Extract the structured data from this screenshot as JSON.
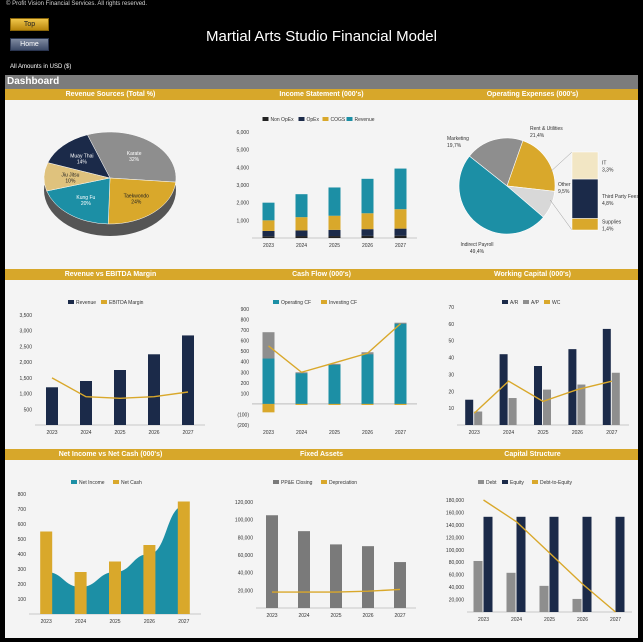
{
  "header": {
    "copyright": "© Profit Vision Financial Services. All rights reserved.",
    "top_button": "Top",
    "home_button": "Home",
    "title": "Martial Arts Studio Financial Model",
    "amounts_note": "All Amounts in  USD ($)",
    "dashboard_label": "Dashboard"
  },
  "colors": {
    "gold": "#d7a72a",
    "navy": "#1b2a49",
    "teal": "#1c8fa5",
    "gray": "#8a8a8a",
    "dark": "#2b2b2b"
  },
  "chart_data": [
    {
      "id": "revenue_sources",
      "type": "pie",
      "title": "Revenue Sources (Total %)",
      "slices": [
        {
          "label": "Karate",
          "value": 32,
          "pct_text": "32%",
          "color": "#8e8e8e"
        },
        {
          "label": "Taekwondo",
          "value": 24,
          "pct_text": "24%",
          "color": "#d9a82b"
        },
        {
          "label": "Kung Fu",
          "value": 20,
          "pct_text": "20%",
          "color": "#1c8fa5"
        },
        {
          "label": "Jiu Jitsu",
          "value": 10,
          "pct_text": "10%",
          "color": "#dfc27d"
        },
        {
          "label": "Muay Thai",
          "value": 14,
          "pct_text": "14%",
          "color": "#1b2a49"
        }
      ]
    },
    {
      "id": "income_statement",
      "type": "bar",
      "stacked": true,
      "title": "Income Statement (000's)",
      "categories": [
        "2023",
        "2024",
        "2025",
        "2026",
        "2027"
      ],
      "legend": [
        "Non OpEx",
        "OpEx",
        "COGS",
        "Revenue"
      ],
      "series": [
        {
          "name": "Non OpEx",
          "color": "#222222",
          "values": [
            100,
            110,
            110,
            120,
            130
          ]
        },
        {
          "name": "OpEx",
          "color": "#1b2a49",
          "values": [
            300,
            320,
            350,
            380,
            400
          ]
        },
        {
          "name": "COGS",
          "color": "#d9a82b",
          "values": [
            600,
            750,
            800,
            900,
            1100
          ]
        },
        {
          "name": "Revenue",
          "color": "#1c8fa5",
          "values": [
            1000,
            1300,
            1600,
            1950,
            2300
          ]
        }
      ],
      "ylim": [
        0,
        6000
      ],
      "yticks": [
        0,
        1000,
        2000,
        3000,
        4000,
        5000,
        6000
      ],
      "ytick_labels": [
        "",
        "1,000",
        "2,000",
        "3,000",
        "4,000",
        "5,000",
        "6,000"
      ]
    },
    {
      "id": "operating_expenses",
      "type": "pie",
      "title": "Operating Expenses (000's)",
      "slices": [
        {
          "label": "Marketing",
          "pct_text": "19,7%",
          "value": 19.7,
          "color": "#8e8e8e"
        },
        {
          "label": "Rent & Utilities",
          "pct_text": "21,4%",
          "value": 21.4,
          "color": "#d9a82b"
        },
        {
          "label": "Other",
          "pct_text": "9,5%",
          "value": 9.5,
          "color": "#d8d8d8"
        },
        {
          "label": "Indirect Payroll",
          "pct_text": "49,4%",
          "value": 49.4,
          "color": "#1c8fa5"
        }
      ],
      "breakdown": [
        {
          "label": "IT",
          "pct_text": "3,3%",
          "value": 3.3,
          "color": "#f2e6c4"
        },
        {
          "label": "Third Party Fees",
          "pct_text": "4,8%",
          "value": 4.8,
          "color": "#1b2a49"
        },
        {
          "label": "Supplies",
          "pct_text": "1,4%",
          "value": 1.4,
          "color": "#d9a82b"
        }
      ]
    },
    {
      "id": "revenue_vs_ebitda",
      "type": "bar",
      "title": "Revenue vs EBITDA Margin",
      "categories": [
        "2023",
        "2024",
        "2025",
        "2026",
        "2027"
      ],
      "legend": [
        "Revenue",
        "EBITDA Margin"
      ],
      "bars": {
        "name": "Revenue",
        "color": "#1b2a49",
        "values": [
          1200,
          1400,
          1750,
          2250,
          2850
        ]
      },
      "line": {
        "name": "EBITDA Margin",
        "color": "#d9a82b",
        "values": [
          1500,
          900,
          850,
          900,
          1050
        ]
      },
      "ylim": [
        0,
        3500
      ],
      "yticks": [
        0,
        500,
        1000,
        1500,
        2000,
        2500,
        3000,
        3500
      ],
      "ytick_labels": [
        "",
        "500",
        "1,000",
        "1,500",
        "2,000",
        "2,500",
        "3,000",
        "3,500"
      ]
    },
    {
      "id": "cash_flow",
      "type": "bar",
      "title": "Cash Flow (000's)",
      "categories": [
        "2023",
        "2024",
        "2025",
        "2026",
        "2027"
      ],
      "legend": [
        "Operating CF",
        "Investing CF"
      ],
      "series": [
        {
          "name": "Operating CF",
          "color": "#1c8fa5",
          "values": [
            430,
            290,
            370,
            470,
            760
          ]
        },
        {
          "name": "Investing CF",
          "color": "#d9a82b",
          "values": [
            -80,
            -10,
            -10,
            -10,
            -10
          ]
        },
        {
          "name": "Total",
          "color": "#8e8e8e",
          "values": [
            680,
            300,
            380,
            490,
            770
          ]
        }
      ],
      "line": {
        "color": "#d9a82b",
        "values": [
          550,
          300,
          390,
          480,
          760
        ]
      },
      "ylim": [
        -200,
        900
      ],
      "yticks": [
        -200,
        -100,
        0,
        100,
        200,
        300,
        400,
        500,
        600,
        700,
        800,
        900
      ],
      "ytick_labels": [
        "(200)",
        "(100)",
        "",
        "100",
        "200",
        "300",
        "400",
        "500",
        "600",
        "700",
        "800",
        "900"
      ]
    },
    {
      "id": "working_capital",
      "type": "bar",
      "title": "Working Capital (000's)",
      "categories": [
        "2023",
        "2024",
        "2025",
        "2026",
        "2027"
      ],
      "legend": [
        "A/R",
        "A/P",
        "WC"
      ],
      "series": [
        {
          "name": "A/R",
          "color": "#1b2a49",
          "values": [
            15,
            42,
            35,
            45,
            57
          ]
        },
        {
          "name": "A/P",
          "color": "#8e8e8e",
          "values": [
            8,
            16,
            21,
            24,
            31
          ]
        }
      ],
      "line": {
        "name": "WC",
        "color": "#d9a82b",
        "values": [
          7,
          26,
          14,
          21,
          26
        ]
      },
      "ylim": [
        0,
        70
      ],
      "yticks": [
        0,
        10,
        20,
        30,
        40,
        50,
        60,
        70
      ],
      "ytick_labels": [
        "",
        "10",
        "20",
        "30",
        "40",
        "50",
        "60",
        "70"
      ]
    },
    {
      "id": "net_income_vs_cash",
      "type": "bar",
      "title": "Net Income vs Net Cash (000's)",
      "categories": [
        "2023",
        "2024",
        "2025",
        "2026",
        "2027"
      ],
      "legend": [
        "Net Income",
        "Net Cash"
      ],
      "area": {
        "name": "Net Income",
        "color": "#1c8fa5",
        "values": [
          280,
          180,
          280,
          400,
          720
        ]
      },
      "bars": {
        "name": "Net Cash",
        "color": "#d9a82b",
        "values": [
          550,
          280,
          350,
          460,
          750
        ]
      },
      "ylim": [
        0,
        800
      ],
      "yticks": [
        0,
        100,
        200,
        300,
        400,
        500,
        600,
        700,
        800
      ],
      "ytick_labels": [
        "",
        "100",
        "200",
        "300",
        "400",
        "500",
        "600",
        "700",
        "800"
      ]
    },
    {
      "id": "fixed_assets",
      "type": "bar",
      "title": "Fixed Assets",
      "categories": [
        "2023",
        "2024",
        "2025",
        "2026",
        "2027"
      ],
      "legend": [
        "PP&E Closing",
        "Depreciation"
      ],
      "bars": {
        "name": "PP&E Closing",
        "color": "#7a7a7a",
        "values": [
          105000,
          87000,
          72000,
          70000,
          52000
        ]
      },
      "line": {
        "name": "Depreciation",
        "color": "#d9a82b",
        "values": [
          18000,
          18000,
          18000,
          19000,
          21000
        ]
      },
      "ylim": [
        0,
        120000
      ],
      "yticks": [
        0,
        20000,
        40000,
        60000,
        80000,
        100000,
        120000
      ],
      "ytick_labels": [
        "",
        "20,000",
        "40,000",
        "60,000",
        "80,000",
        "100,000",
        "120,000"
      ]
    },
    {
      "id": "capital_structure",
      "type": "bar",
      "title": "Capital Structure",
      "categories": [
        "2023",
        "2024",
        "2025",
        "2026",
        "2027"
      ],
      "legend": [
        "Debt",
        "Equity",
        "Debt-to-Equity"
      ],
      "series": [
        {
          "name": "Debt",
          "color": "#8e8e8e",
          "values": [
            82000,
            63000,
            42000,
            21000,
            0
          ]
        },
        {
          "name": "Equity",
          "color": "#1b2a49",
          "values": [
            153000,
            153000,
            153000,
            153000,
            153000
          ]
        }
      ],
      "line": {
        "name": "Debt-to-Equity",
        "color": "#d9a82b",
        "values": [
          180000,
          145000,
          95000,
          45000,
          0
        ]
      },
      "ylim": [
        0,
        180000
      ],
      "yticks": [
        0,
        20000,
        40000,
        60000,
        80000,
        100000,
        120000,
        140000,
        160000,
        180000
      ],
      "ytick_labels": [
        "",
        "20,000",
        "40,000",
        "60,000",
        "80,000",
        "100,000",
        "120,000",
        "140,000",
        "160,000",
        "180,000"
      ]
    }
  ]
}
